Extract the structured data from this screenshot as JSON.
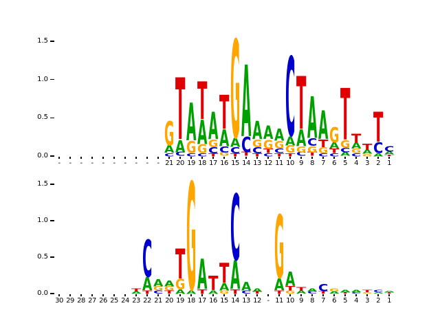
{
  "figure": {
    "background": "#ffffff"
  },
  "colors": {
    "A": "#00A000",
    "C": "#0000CC",
    "G": "#FFA500",
    "T": "#E00000"
  },
  "chart_data": [
    {
      "type": "sequence_logo",
      "panel": "top",
      "title": "",
      "xlabel": "",
      "ylabel": "",
      "ylim": [
        0,
        1.5
      ],
      "yticks": [
        "0.0",
        "0.5",
        "1.0",
        "1.5"
      ],
      "columns": [
        {
          "label": "-",
          "stack": []
        },
        {
          "label": "-",
          "stack": []
        },
        {
          "label": "-",
          "stack": []
        },
        {
          "label": "-",
          "stack": []
        },
        {
          "label": "-",
          "stack": []
        },
        {
          "label": "-",
          "stack": []
        },
        {
          "label": "-",
          "stack": []
        },
        {
          "label": "-",
          "stack": []
        },
        {
          "label": "-",
          "stack": []
        },
        {
          "label": "-",
          "stack": []
        },
        {
          "label": "21",
          "stack": [
            [
              "C",
              0.04
            ],
            [
              "A",
              0.1
            ],
            [
              "G",
              0.32
            ]
          ]
        },
        {
          "label": "20",
          "stack": [
            [
              "C",
              0.05
            ],
            [
              "A",
              0.16
            ],
            [
              "T",
              0.82
            ]
          ]
        },
        {
          "label": "19",
          "stack": [
            [
              "C",
              0.04
            ],
            [
              "G",
              0.16
            ],
            [
              "A",
              0.5
            ]
          ]
        },
        {
          "label": "18",
          "stack": [
            [
              "C",
              0.04
            ],
            [
              "G",
              0.12
            ],
            [
              "A",
              0.32
            ],
            [
              "T",
              0.5
            ]
          ]
        },
        {
          "label": "17",
          "stack": [
            [
              "T",
              0.04
            ],
            [
              "C",
              0.08
            ],
            [
              "G",
              0.1
            ],
            [
              "A",
              0.36
            ]
          ]
        },
        {
          "label": "16",
          "stack": [
            [
              "G",
              0.05
            ],
            [
              "C",
              0.08
            ],
            [
              "A",
              0.22
            ],
            [
              "T",
              0.45
            ]
          ]
        },
        {
          "label": "15",
          "stack": [
            [
              "T",
              0.04
            ],
            [
              "C",
              0.08
            ],
            [
              "A",
              0.12
            ],
            [
              "G",
              1.3
            ]
          ]
        },
        {
          "label": "14",
          "stack": [
            [
              "T",
              0.05
            ],
            [
              "C",
              0.2
            ],
            [
              "A",
              0.95
            ]
          ]
        },
        {
          "label": "13",
          "stack": [
            [
              "T",
              0.04
            ],
            [
              "C",
              0.08
            ],
            [
              "G",
              0.1
            ],
            [
              "A",
              0.24
            ]
          ]
        },
        {
          "label": "12",
          "stack": [
            [
              "C",
              0.04
            ],
            [
              "T",
              0.06
            ],
            [
              "G",
              0.12
            ],
            [
              "A",
              0.18
            ]
          ]
        },
        {
          "label": "11",
          "stack": [
            [
              "T",
              0.04
            ],
            [
              "C",
              0.06
            ],
            [
              "G",
              0.1
            ],
            [
              "A",
              0.16
            ]
          ]
        },
        {
          "label": "10",
          "stack": [
            [
              "T",
              0.04
            ],
            [
              "G",
              0.1
            ],
            [
              "A",
              0.12
            ],
            [
              "C",
              1.05
            ]
          ]
        },
        {
          "label": "9",
          "stack": [
            [
              "C",
              0.05
            ],
            [
              "G",
              0.08
            ],
            [
              "A",
              0.22
            ],
            [
              "T",
              0.7
            ]
          ]
        },
        {
          "label": "8",
          "stack": [
            [
              "T",
              0.05
            ],
            [
              "G",
              0.08
            ],
            [
              "C",
              0.1
            ],
            [
              "A",
              0.55
            ]
          ]
        },
        {
          "label": "7",
          "stack": [
            [
              "C",
              0.04
            ],
            [
              "G",
              0.08
            ],
            [
              "T",
              0.1
            ],
            [
              "A",
              0.38
            ]
          ]
        },
        {
          "label": "6",
          "stack": [
            [
              "C",
              0.04
            ],
            [
              "T",
              0.06
            ],
            [
              "A",
              0.08
            ],
            [
              "G",
              0.2
            ]
          ]
        },
        {
          "label": "5",
          "stack": [
            [
              "A",
              0.05
            ],
            [
              "C",
              0.06
            ],
            [
              "G",
              0.1
            ],
            [
              "T",
              0.68
            ]
          ]
        },
        {
          "label": "4",
          "stack": [
            [
              "C",
              0.04
            ],
            [
              "G",
              0.06
            ],
            [
              "A",
              0.08
            ],
            [
              "T",
              0.12
            ]
          ]
        },
        {
          "label": "3",
          "stack": [
            [
              "G",
              0.03
            ],
            [
              "A",
              0.05
            ],
            [
              "T",
              0.08
            ]
          ]
        },
        {
          "label": "2",
          "stack": [
            [
              "A",
              0.04
            ],
            [
              "C",
              0.14
            ],
            [
              "T",
              0.4
            ]
          ]
        },
        {
          "label": "1",
          "stack": [
            [
              "T",
              0.02
            ],
            [
              "A",
              0.04
            ],
            [
              "C",
              0.07
            ]
          ]
        }
      ]
    },
    {
      "type": "sequence_logo",
      "panel": "bottom",
      "title": "",
      "xlabel": "",
      "ylabel": "",
      "ylim": [
        0,
        1.5
      ],
      "yticks": [
        "0.0",
        "0.5",
        "1.0",
        "1.5"
      ],
      "columns": [
        {
          "label": "30",
          "stack": []
        },
        {
          "label": "29",
          "stack": []
        },
        {
          "label": "28",
          "stack": []
        },
        {
          "label": "27",
          "stack": []
        },
        {
          "label": "26",
          "stack": []
        },
        {
          "label": "25",
          "stack": []
        },
        {
          "label": "24",
          "stack": []
        },
        {
          "label": "23",
          "stack": [
            [
              "A",
              0.03
            ],
            [
              "T",
              0.04
            ]
          ]
        },
        {
          "label": "22",
          "stack": [
            [
              "T",
              0.05
            ],
            [
              "A",
              0.18
            ],
            [
              "C",
              0.52
            ]
          ]
        },
        {
          "label": "21",
          "stack": [
            [
              "C",
              0.04
            ],
            [
              "G",
              0.06
            ],
            [
              "A",
              0.1
            ]
          ]
        },
        {
          "label": "20",
          "stack": [
            [
              "T",
              0.04
            ],
            [
              "G",
              0.06
            ],
            [
              "A",
              0.08
            ]
          ]
        },
        {
          "label": "19",
          "stack": [
            [
              "A",
              0.06
            ],
            [
              "G",
              0.14
            ],
            [
              "T",
              0.42
            ]
          ]
        },
        {
          "label": "18",
          "stack": [
            [
              "A",
              0.05
            ],
            [
              "G",
              1.5
            ]
          ]
        },
        {
          "label": "17",
          "stack": [
            [
              "T",
              0.06
            ],
            [
              "A",
              0.42
            ]
          ]
        },
        {
          "label": "16",
          "stack": [
            [
              "A",
              0.05
            ],
            [
              "T",
              0.2
            ]
          ]
        },
        {
          "label": "15",
          "stack": [
            [
              "G",
              0.04
            ],
            [
              "A",
              0.1
            ],
            [
              "T",
              0.28
            ]
          ]
        },
        {
          "label": "14",
          "stack": [
            [
              "T",
              0.06
            ],
            [
              "A",
              0.4
            ],
            [
              "C",
              0.92
            ]
          ]
        },
        {
          "label": "13",
          "stack": [
            [
              "C",
              0.04
            ],
            [
              "A",
              0.12
            ]
          ]
        },
        {
          "label": "12",
          "stack": [
            [
              "T",
              0.03
            ],
            [
              "A",
              0.05
            ]
          ]
        },
        {
          "label": "-",
          "stack": []
        },
        {
          "label": "11",
          "stack": [
            [
              "T",
              0.05
            ],
            [
              "A",
              0.16
            ],
            [
              "G",
              0.88
            ]
          ]
        },
        {
          "label": "10",
          "stack": [
            [
              "G",
              0.04
            ],
            [
              "T",
              0.06
            ],
            [
              "A",
              0.2
            ]
          ]
        },
        {
          "label": "9",
          "stack": [
            [
              "A",
              0.04
            ],
            [
              "T",
              0.05
            ]
          ]
        },
        {
          "label": "8",
          "stack": [
            [
              "C",
              0.03
            ],
            [
              "A",
              0.04
            ]
          ]
        },
        {
          "label": "7",
          "stack": [
            [
              "T",
              0.03
            ],
            [
              "C",
              0.1
            ]
          ]
        },
        {
          "label": "6",
          "stack": [
            [
              "A",
              0.03
            ],
            [
              "G",
              0.04
            ]
          ]
        },
        {
          "label": "5",
          "stack": [
            [
              "T",
              0.02
            ],
            [
              "A",
              0.03
            ]
          ]
        },
        {
          "label": "4",
          "stack": [
            [
              "C",
              0.02
            ],
            [
              "A",
              0.03
            ]
          ]
        },
        {
          "label": "3",
          "stack": [
            [
              "G",
              0.02
            ],
            [
              "T",
              0.03
            ]
          ]
        },
        {
          "label": "2",
          "stack": [
            [
              "A",
              0.02
            ],
            [
              "C",
              0.03
            ]
          ]
        },
        {
          "label": "1",
          "stack": [
            [
              "T",
              0.02
            ],
            [
              "A",
              0.02
            ]
          ]
        }
      ]
    }
  ]
}
